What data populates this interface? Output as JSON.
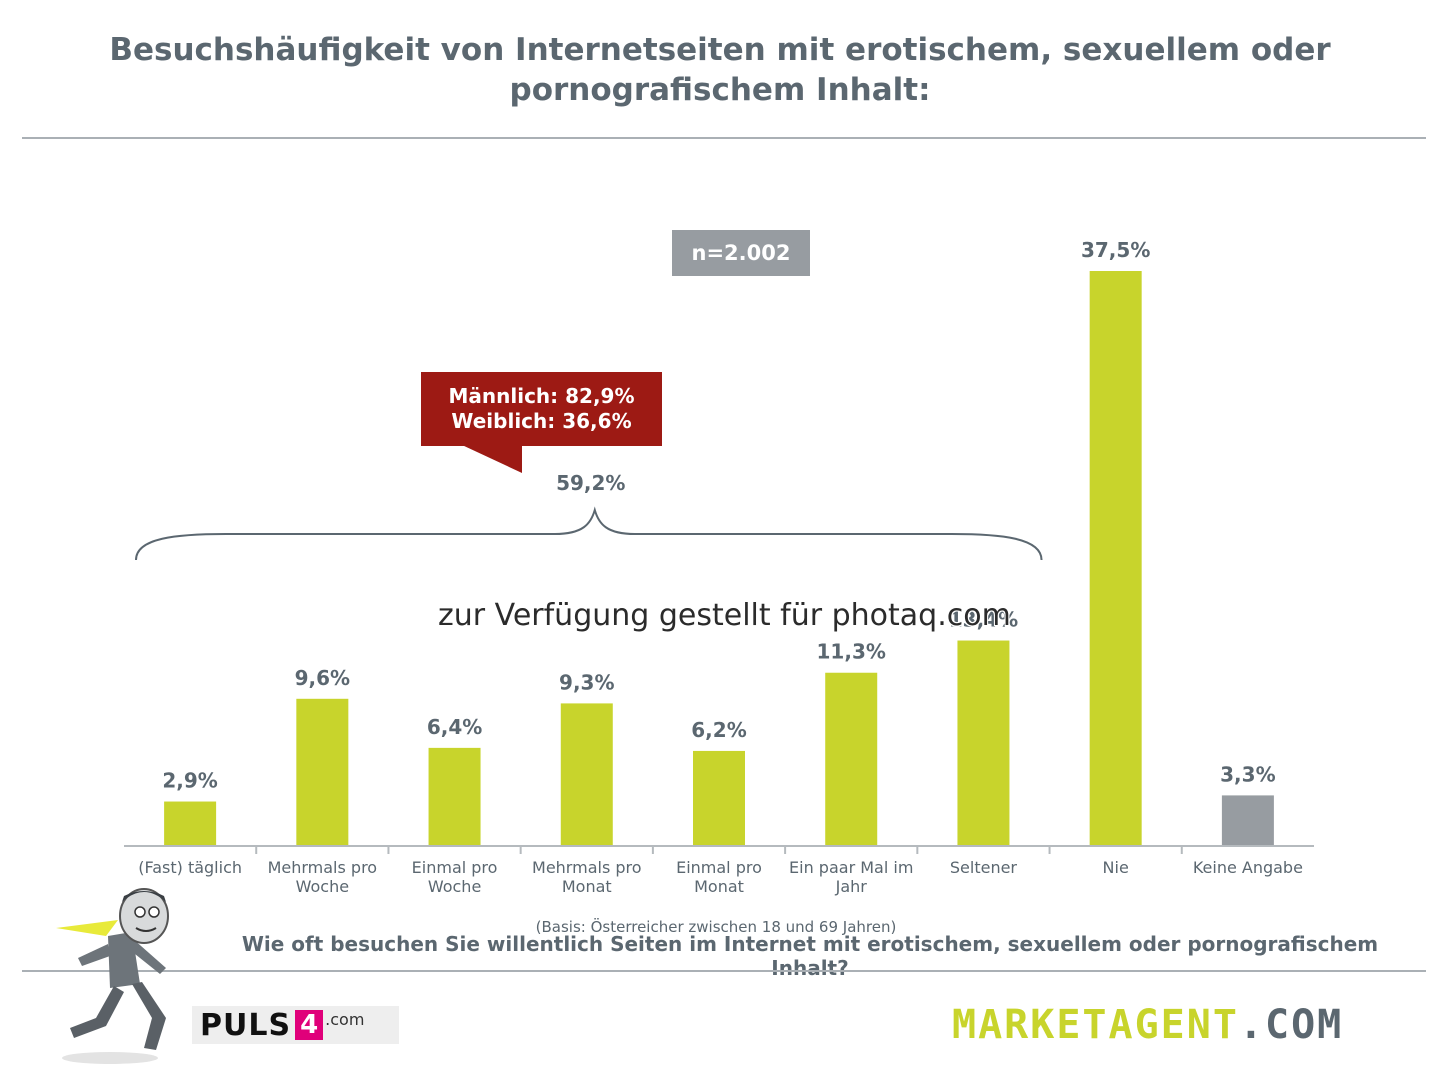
{
  "title": "Besuchshäufigkeit von Internetseiten mit erotischem, sexuellem oder pornografischem Inhalt:",
  "sample_badge": "n=2.002",
  "callout": {
    "line1": "Männlich: 82,9%",
    "line2": "Weiblich: 36,6%"
  },
  "group_total_label": "59,2%",
  "basis_note": "(Basis: Österreicher zwischen 18 und 69 Jahren)",
  "question": "Wie oft besuchen Sie willentlich Seiten im Internet mit erotischem, sexuellem oder pornografischem Inhalt?",
  "watermark": "zur Verfügung gestellt für photaq.com",
  "logos": {
    "puls4_text": "PULS",
    "puls4_digit": "4",
    "puls4_suffix": ".com",
    "marketagent_main": "MARKETAGENT",
    "marketagent_suffix": ".COM"
  },
  "colors": {
    "bar": "#c8d42c",
    "bar_no_answer": "#979ca1",
    "label_text": "#5b6770",
    "callout_bg": "#9d1a14"
  },
  "chart_data": {
    "type": "bar",
    "categories": [
      [
        "(Fast) täglich"
      ],
      [
        "Mehrmals pro",
        "Woche"
      ],
      [
        "Einmal pro",
        "Woche"
      ],
      [
        "Mehrmals pro",
        "Monat"
      ],
      [
        "Einmal pro",
        "Monat"
      ],
      [
        "Ein paar Mal im",
        "Jahr"
      ],
      [
        "Seltener"
      ],
      [
        "Nie"
      ],
      [
        "Keine Angabe"
      ]
    ],
    "values": [
      2.9,
      9.6,
      6.4,
      9.3,
      6.2,
      11.3,
      13.4,
      37.5,
      3.3
    ],
    "value_labels": [
      "2,9%",
      "9,6%",
      "6,4%",
      "9,3%",
      "6,2%",
      "11,3%",
      "13,4%",
      "37,5%",
      "3,3%"
    ],
    "bar_colors": [
      "#c8d42c",
      "#c8d42c",
      "#c8d42c",
      "#c8d42c",
      "#c8d42c",
      "#c8d42c",
      "#c8d42c",
      "#c8d42c",
      "#979ca1"
    ],
    "ylim": [
      0,
      40
    ],
    "grid": false,
    "legend": "none",
    "bracket_covers_categories": [
      0,
      6
    ]
  }
}
